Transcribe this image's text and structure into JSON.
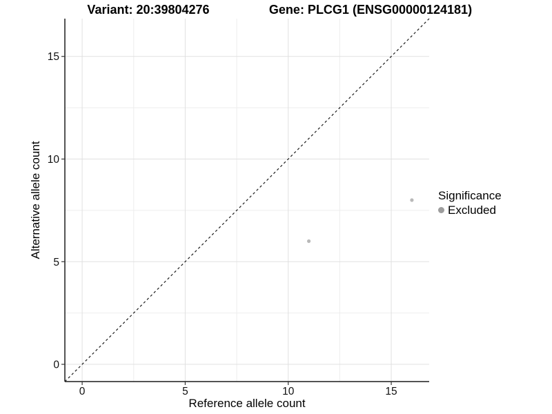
{
  "header": {
    "variant_title": "Variant: 20:39804276",
    "gene_title": "Gene: PLCG1 (ENSG00000124181)"
  },
  "chart_data": {
    "type": "scatter",
    "xlabel": "Reference allele count",
    "ylabel": "Alternative allele count",
    "xlim": [
      -0.84,
      16.84
    ],
    "ylim": [
      -0.84,
      16.84
    ],
    "xticks": [
      0,
      5,
      10,
      15
    ],
    "yticks": [
      0,
      5,
      10,
      15
    ],
    "x_minor_ticks": [
      2.5,
      7.5,
      12.5
    ],
    "y_minor_ticks": [
      2.5,
      7.5,
      12.5
    ],
    "grid": "major-and-minor",
    "points": [
      {
        "x": 11,
        "y": 6
      },
      {
        "x": 16,
        "y": 8
      }
    ],
    "point_color": "#b9b9b9",
    "point_radius": 2.6,
    "identity_line": {
      "type": "y=x",
      "style": "dashed",
      "color": "#1a1a1a"
    },
    "legend": {
      "title": "Significance",
      "position": "right",
      "items": [
        {
          "label": "Excluded",
          "color": "#9d9d9d"
        }
      ]
    },
    "colors": {
      "grid_major": "#e0e0e0",
      "grid_minor": "#ededed",
      "axis_line": "#1a1a1a",
      "tick_mark": "#333333",
      "tick_label": "#111111",
      "background": "#ffffff"
    }
  }
}
